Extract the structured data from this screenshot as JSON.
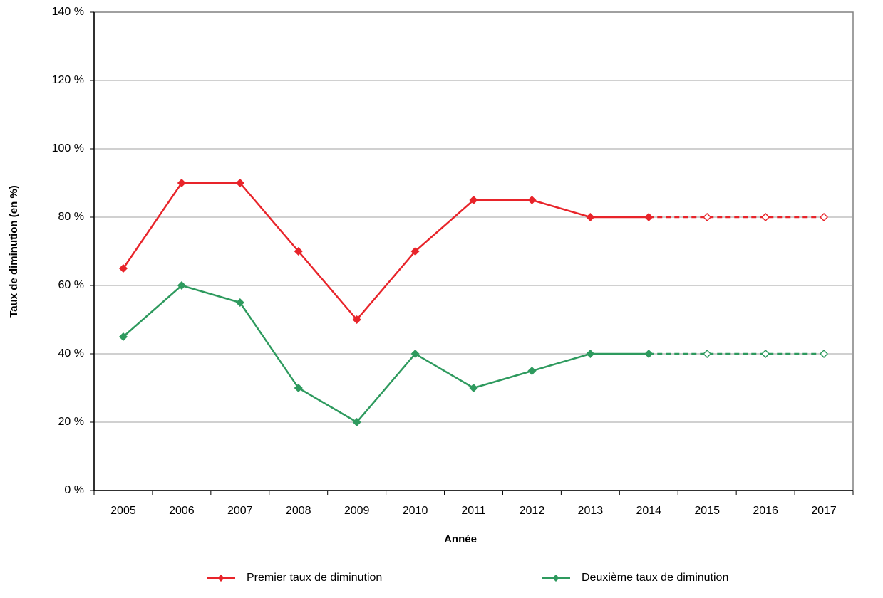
{
  "chart_data": {
    "type": "line",
    "xlabel": "Année",
    "ylabel": "Taux de diminution (en %)",
    "categories": [
      "2005",
      "2006",
      "2007",
      "2008",
      "2009",
      "2010",
      "2011",
      "2012",
      "2013",
      "2014",
      "2015",
      "2016",
      "2017"
    ],
    "series": [
      {
        "name": "Premier taux de diminution",
        "color": "#e8242a",
        "dashed_from": 9,
        "values": [
          65,
          90,
          90,
          70,
          50,
          70,
          85,
          85,
          80,
          80,
          80,
          80,
          80
        ]
      },
      {
        "name": "Deuxième taux de diminution",
        "color": "#2e9a5e",
        "dashed_from": 9,
        "values": [
          45,
          60,
          55,
          30,
          20,
          40,
          30,
          35,
          40,
          40,
          40,
          40,
          40
        ]
      }
    ],
    "ylim": [
      0,
      140
    ],
    "yticks": [
      {
        "value": 0,
        "label": "0 %"
      },
      {
        "value": 20,
        "label": "20 %"
      },
      {
        "value": 40,
        "label": "40 %"
      },
      {
        "value": 60,
        "label": "60 %"
      },
      {
        "value": 80,
        "label": "80 %"
      },
      {
        "value": 100,
        "label": "100 %"
      },
      {
        "value": 120,
        "label": "120 %"
      },
      {
        "value": 140,
        "label": "140 %"
      }
    ],
    "grid": true,
    "legend": "bottom"
  }
}
